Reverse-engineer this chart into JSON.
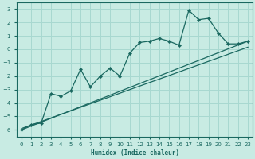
{
  "xlabel": "Humidex (Indice chaleur)",
  "background_color": "#c8ebe3",
  "grid_color": "#a8d8d0",
  "line_color": "#1a6860",
  "xlim": [
    -0.5,
    23.5
  ],
  "ylim": [
    -6.5,
    3.5
  ],
  "xticks": [
    0,
    1,
    2,
    3,
    4,
    5,
    6,
    7,
    8,
    9,
    10,
    11,
    12,
    13,
    14,
    15,
    16,
    17,
    18,
    19,
    20,
    21,
    22,
    23
  ],
  "yticks": [
    -6,
    -5,
    -4,
    -3,
    -2,
    -1,
    0,
    1,
    2,
    3
  ],
  "jagged_x": [
    0,
    1,
    2,
    3,
    4,
    5,
    6,
    7,
    8,
    9,
    10,
    11,
    12,
    13,
    14,
    15,
    16,
    17,
    18,
    19,
    20,
    21,
    22,
    23
  ],
  "jagged_y": [
    -6.0,
    -5.6,
    -5.5,
    -3.3,
    -3.5,
    -3.1,
    -1.5,
    -2.8,
    -2.0,
    -1.4,
    -2.0,
    -0.3,
    0.5,
    0.6,
    0.8,
    0.6,
    0.3,
    2.9,
    2.2,
    2.3,
    1.2,
    0.4,
    0.4,
    0.6
  ],
  "trend1_x": [
    0,
    23
  ],
  "trend1_y": [
    -6.0,
    0.6
  ],
  "trend2_x": [
    0,
    23
  ],
  "trend2_y": [
    -5.9,
    0.15
  ]
}
